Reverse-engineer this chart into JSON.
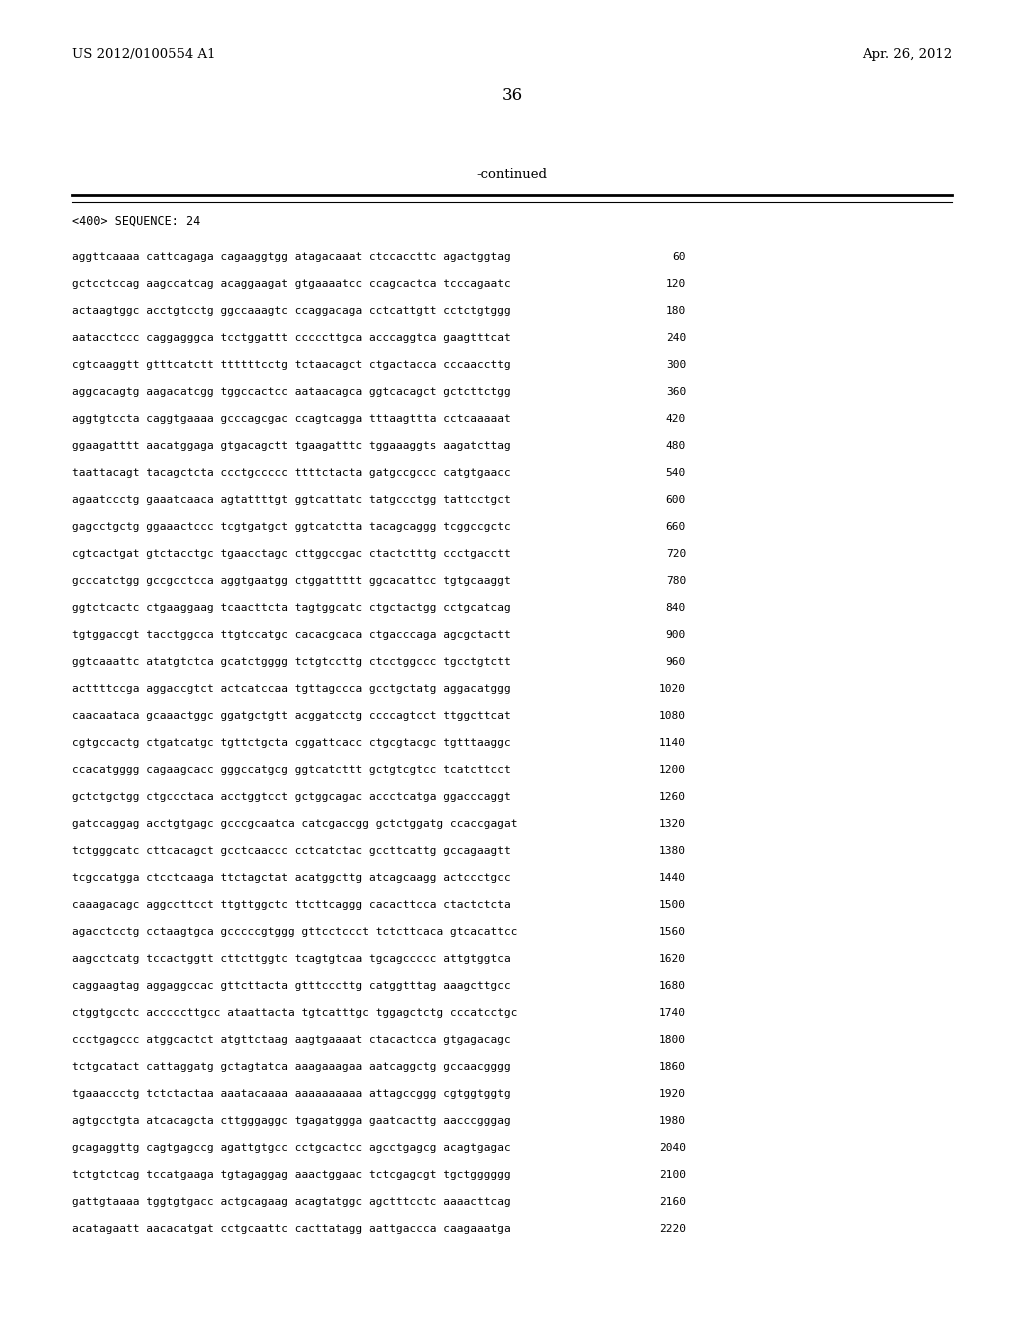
{
  "header_left": "US 2012/0100554 A1",
  "header_right": "Apr. 26, 2012",
  "page_number": "36",
  "continued_text": "-continued",
  "sequence_header": "<400> SEQUENCE: 24",
  "background_color": "#ffffff",
  "text_color": "#000000",
  "sequence_lines": [
    [
      "aggttcaaaa cattcagaga cagaaggtgg atagacaaat ctccaccttc agactggtag",
      "60"
    ],
    [
      "gctcctccag aagccatcag acaggaagat gtgaaaatcc ccagcactca tcccagaatc",
      "120"
    ],
    [
      "actaagtggc acctgtcctg ggccaaagtc ccaggacaga cctcattgtt cctctgtggg",
      "180"
    ],
    [
      "aatacctccc caggagggca tcctggattt cccccttgca acccaggtca gaagtttcat",
      "240"
    ],
    [
      "cgtcaaggtt gtttcatctt ttttttcctg tctaacagct ctgactacca cccaaccttg",
      "300"
    ],
    [
      "aggcacagtg aagacatcgg tggccactcc aataacagca ggtcacagct gctcttctgg",
      "360"
    ],
    [
      "aggtgtccta caggtgaaaa gcccagcgac ccagtcagga tttaagttta cctcaaaaat",
      "420"
    ],
    [
      "ggaagatttt aacatggaga gtgacagctt tgaagatttc tggaaaggts aagatcttag",
      "480"
    ],
    [
      "taattacagt tacagctcta ccctgccccc ttttctacta gatgccgccc catgtgaacc",
      "540"
    ],
    [
      "agaatccctg gaaatcaaca agtattttgt ggtcattatc tatgccctgg tattcctgct",
      "600"
    ],
    [
      "gagcctgctg ggaaactccc tcgtgatgct ggtcatctta tacagcaggg tcggccgctc",
      "660"
    ],
    [
      "cgtcactgat gtctacctgc tgaacctagc cttggccgac ctactctttg ccctgacctt",
      "720"
    ],
    [
      "gcccatctgg gccgcctcca aggtgaatgg ctggattttt ggcacattcc tgtgcaaggt",
      "780"
    ],
    [
      "ggtctcactc ctgaaggaag tcaacttcta tagtggcatc ctgctactgg cctgcatcag",
      "840"
    ],
    [
      "tgtggaccgt tacctggcca ttgtccatgc cacacgcaca ctgacccaga agcgctactt",
      "900"
    ],
    [
      "ggtcaaattc atatgtctca gcatctgggg tctgtccttg ctcctggccc tgcctgtctt",
      "960"
    ],
    [
      "acttttccga aggaccgtct actcatccaa tgttagccca gcctgctatg aggacatggg",
      "1020"
    ],
    [
      "caacaataca gcaaactggc ggatgctgtt acggatcctg ccccagtcct ttggcttcat",
      "1080"
    ],
    [
      "cgtgccactg ctgatcatgc tgttctgcta cggattcacc ctgcgtacgc tgtttaaggc",
      "1140"
    ],
    [
      "ccacatgggg cagaagcacc gggccatgcg ggtcatcttt gctgtcgtcc tcatcttcct",
      "1200"
    ],
    [
      "gctctgctgg ctgccctaca acctggtcct gctggcagac accctcatga ggacccaggt",
      "1260"
    ],
    [
      "gatccaggag acctgtgagc gcccgcaatca catcgaccgg gctctggatg ccaccgagat",
      "1320"
    ],
    [
      "tctgggcatc cttcacagct gcctcaaccc cctcatctac gccttcattg gccagaagtt",
      "1380"
    ],
    [
      "tcgccatgga ctcctcaaga ttctagctat acatggcttg atcagcaagg actccctgcc",
      "1440"
    ],
    [
      "caaagacagc aggccttcct ttgttggctc ttcttcaggg cacacttcca ctactctcta",
      "1500"
    ],
    [
      "agacctcctg cctaagtgca gcccccgtggg gttcctccct tctcttcaca gtcacattcc",
      "1560"
    ],
    [
      "aagcctcatg tccactggtt cttcttggtc tcagtgtcaa tgcagccccc attgtggtca",
      "1620"
    ],
    [
      "caggaagtag aggaggccac gttcttacta gtttcccttg catggtttag aaagcttgcc",
      "1680"
    ],
    [
      "ctggtgcctc acccccttgcc ataattacta tgtcatttgc tggagctctg cccatcctgc",
      "1740"
    ],
    [
      "ccctgagccc atggcactct atgttctaag aagtgaaaat ctacactcca gtgagacagc",
      "1800"
    ],
    [
      "tctgcatact cattaggatg gctagtatca aaagaaagaa aatcaggctg gccaacgggg",
      "1860"
    ],
    [
      "tgaaaccctg tctctactaa aaatacaaaa aaaaaaaaaa attagccggg cgtggtggtg",
      "1920"
    ],
    [
      "agtgcctgta atcacagcta cttgggaggc tgagatggga gaatcacttg aacccgggag",
      "1980"
    ],
    [
      "gcagaggttg cagtgagccg agattgtgcc cctgcactcc agcctgagcg acagtgagac",
      "2040"
    ],
    [
      "tctgtctcag tccatgaaga tgtagaggag aaactggaac tctcgagcgt tgctgggggg",
      "2100"
    ],
    [
      "gattgtaaaa tggtgtgacc actgcagaag acagtatggc agctttcctc aaaacttcag",
      "2160"
    ],
    [
      "acatagaatt aacacatgat cctgcaattc cacttatagg aattgaccca caagaaatga",
      "2220"
    ]
  ]
}
